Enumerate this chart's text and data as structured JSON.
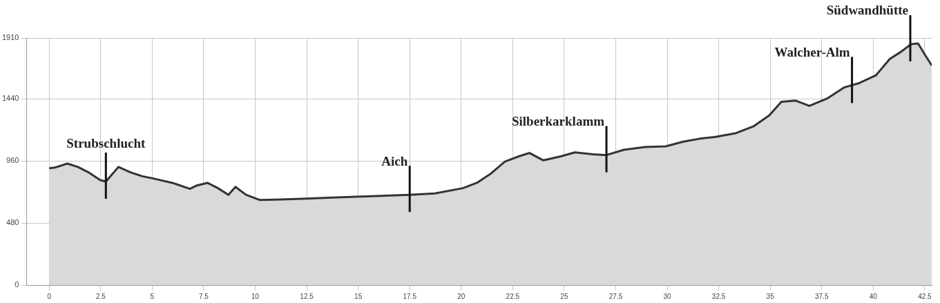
{
  "chart_data": {
    "type": "area",
    "grid": true,
    "xlim": [
      -1.1,
      42.84
    ],
    "xticks": [
      0,
      2.5,
      5,
      7.5,
      10,
      12.5,
      15,
      17.5,
      20,
      22.5,
      25,
      27.5,
      30,
      32.5,
      35,
      37.5,
      40,
      42.5
    ],
    "ylim": [
      0,
      1910
    ],
    "yticks": [
      0,
      480,
      960,
      1440,
      1910
    ],
    "x": [
      0,
      0.27,
      0.88,
      1.39,
      1.9,
      2.48,
      2.75,
      3.36,
      3.94,
      4.52,
      5.13,
      5.98,
      6.83,
      7.17,
      7.68,
      8.19,
      8.7,
      9.04,
      9.55,
      10.23,
      11.25,
      12.27,
      13.97,
      15.66,
      17.5,
      18.72,
      20.08,
      20.76,
      21.44,
      22.12,
      22.8,
      23.31,
      23.99,
      24.84,
      25.52,
      26.37,
      27.05,
      27.9,
      28.92,
      29.93,
      30.78,
      31.63,
      32.31,
      33.33,
      34.18,
      34.96,
      35.54,
      36.22,
      36.9,
      37.75,
      38.6,
      39.28,
      40.13,
      40.81,
      41.32,
      41.84,
      42.18,
      42.53,
      42.84
    ],
    "series": [
      {
        "color": "#333333",
        "values": [
          903,
          908,
          939,
          913,
          872,
          811,
          800,
          913,
          872,
          841,
          821,
          790,
          744,
          770,
          790,
          749,
          698,
          759,
          698,
          657,
          662,
          667,
          677,
          687,
          698,
          708,
          749,
          790,
          862,
          954,
          995,
          1021,
          964,
          995,
          1026,
          1011,
          1005,
          1046,
          1067,
          1072,
          1108,
          1133,
          1144,
          1174,
          1226,
          1313,
          1416,
          1426,
          1385,
          1441,
          1528,
          1559,
          1621,
          1749,
          1800,
          1862,
          1867,
          1775,
          1698
        ]
      }
    ],
    "annotations": [
      {
        "text": "Strubschlucht",
        "x": 2.75,
        "y": 800
      },
      {
        "text": "Aich",
        "x": 17.5,
        "y": 698
      },
      {
        "text": "Silberkarklamm",
        "x": 27.05,
        "y": 1005
      },
      {
        "text": "Walcher-Alm",
        "x": 38.97,
        "y": 1540
      },
      {
        "text": "Südwandhütte",
        "x": 41.8,
        "y": 1862
      }
    ]
  }
}
